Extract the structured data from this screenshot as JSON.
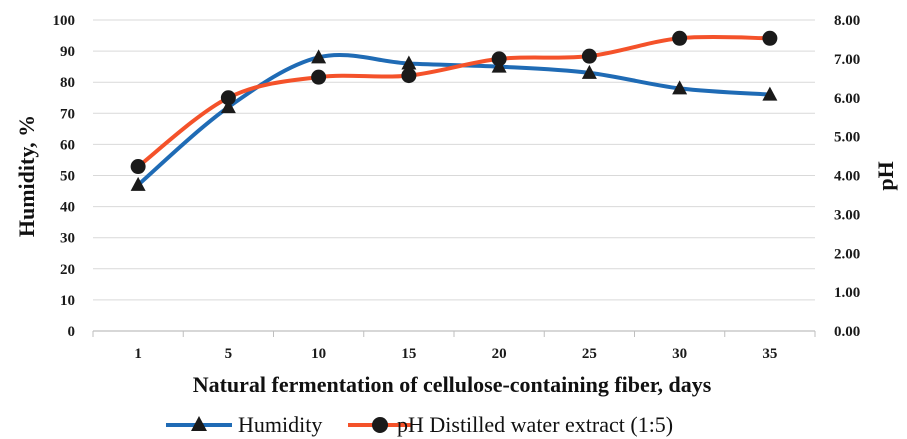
{
  "chart_data": {
    "type": "line",
    "title": "",
    "xlabel": "Natural fermentation of cellulose-containing fiber, days",
    "ylabel_left": "Humidity, %",
    "ylabel_right": "pH",
    "categories": [
      "1",
      "5",
      "10",
      "15",
      "20",
      "25",
      "30",
      "35"
    ],
    "ylim_left": [
      0,
      100
    ],
    "ylim_right": [
      0,
      8
    ],
    "yticks_left": [
      "0",
      "10",
      "20",
      "30",
      "40",
      "50",
      "60",
      "70",
      "80",
      "90",
      "100"
    ],
    "yticks_right": [
      "0.00",
      "1.00",
      "2.00",
      "3.00",
      "4.00",
      "5.00",
      "6.00",
      "7.00",
      "8.00"
    ],
    "grid": true,
    "legend_position": "bottom",
    "series": [
      {
        "name": "Humidity",
        "axis": "left",
        "marker": "triangle",
        "color": "#1f6bb5",
        "values": [
          47,
          72,
          88,
          86,
          85,
          83,
          78,
          76
        ]
      },
      {
        "name": "pH Distilled water extract (1:5)",
        "axis": "right",
        "marker": "circle",
        "color": "#f4522a",
        "values": [
          4.23,
          6.0,
          6.53,
          6.57,
          7.0,
          7.07,
          7.53,
          7.53
        ]
      }
    ]
  }
}
